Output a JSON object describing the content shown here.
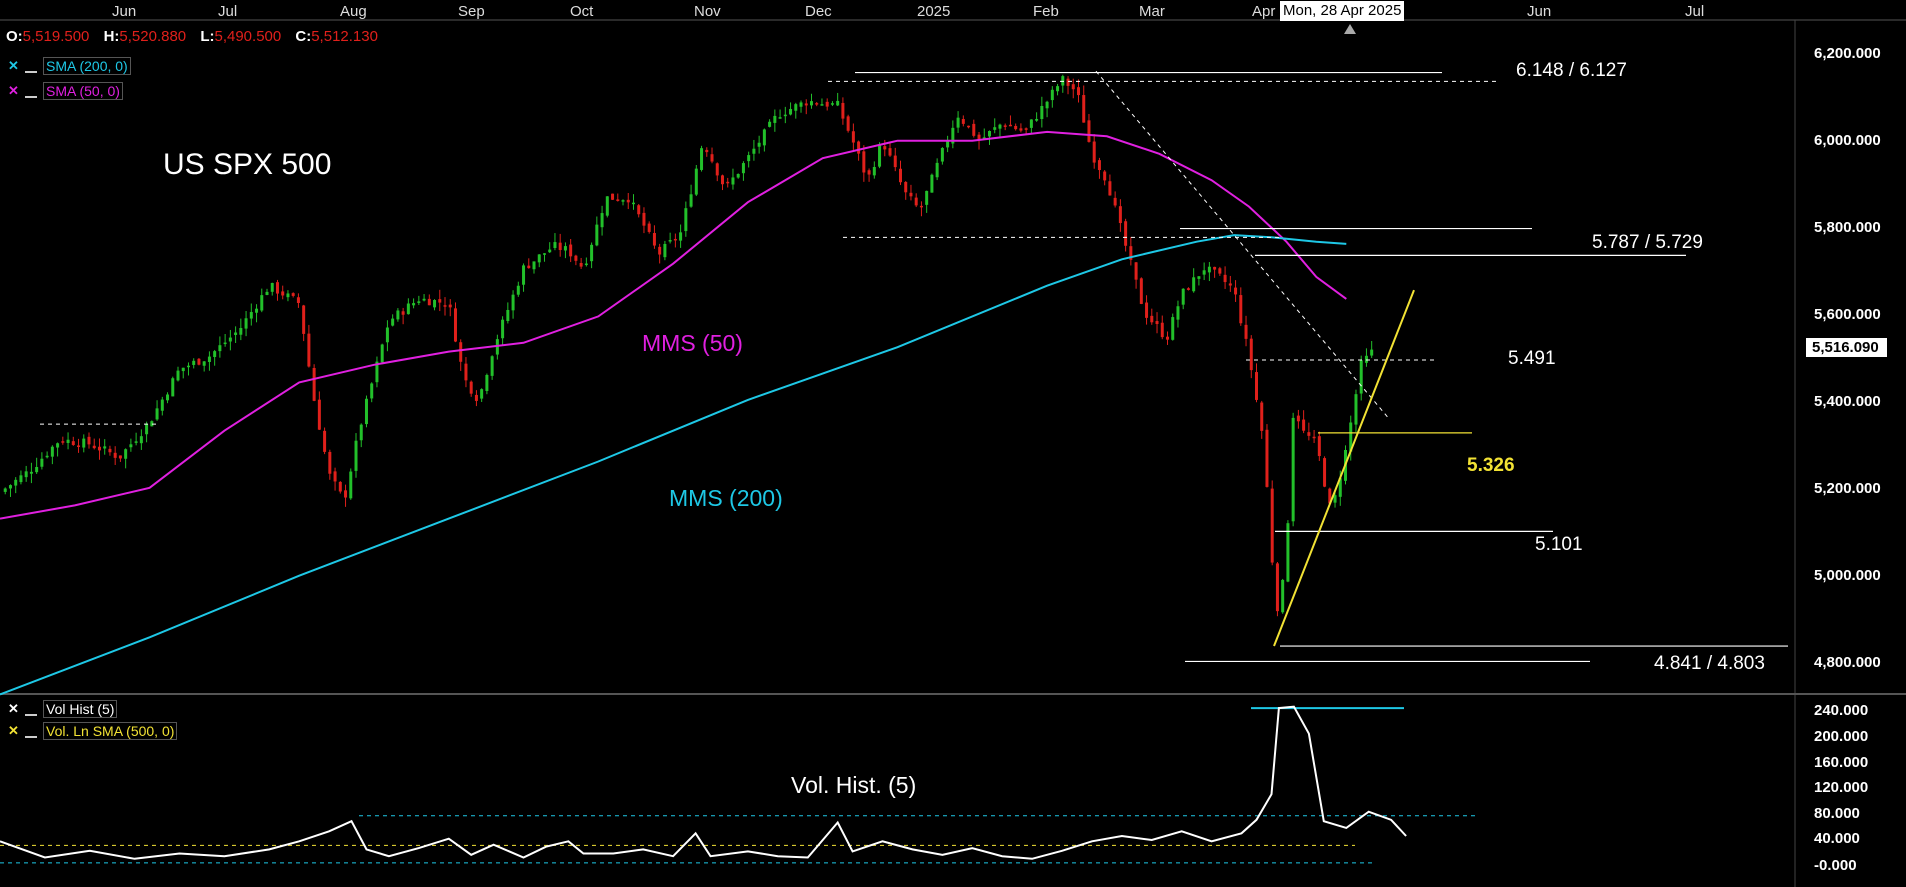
{
  "header": {
    "o_label": "O:",
    "o_value": "5,519.500",
    "h_label": "H:",
    "h_value": "5,520.880",
    "l_label": "L:",
    "l_value": "5,490.500",
    "c_label": "C:",
    "c_value": "5,512.130",
    "cursor_date": "Mon, 28 Apr 2025"
  },
  "legends": {
    "sma200": "SMA (200, 0)",
    "sma50": "SMA (50, 0)",
    "volhist": "Vol Hist (5)",
    "volsma": "Vol. Ln SMA (500, 0)"
  },
  "colors": {
    "up": "#22c02a",
    "down": "#e0201b",
    "sma200": "#1ec8e6",
    "sma50": "#e020e0",
    "trend": "#f2e234",
    "vol": "#ffffff",
    "level": "#ffffff"
  },
  "chart_data": [
    {
      "type": "line",
      "title": "US SPX 500",
      "x_ticks": [
        "Jun",
        "Jul",
        "Aug",
        "Sep",
        "Oct",
        "Nov",
        "Dec",
        "2025",
        "Feb",
        "Mar",
        "Apr",
        "Jun",
        "Jul"
      ],
      "y_ticks": [
        "6,200.000",
        "6,000.000",
        "5,800.000",
        "5,600.000",
        "5,400.000",
        "5,200.000",
        "5,000.000",
        "4,800.000"
      ],
      "ylim": [
        4740,
        6260
      ],
      "last_price": "5,516.090",
      "price_path": [
        [
          0,
          5190
        ],
        [
          4,
          5240
        ],
        [
          8,
          5310
        ],
        [
          12,
          5300
        ],
        [
          16,
          5270
        ],
        [
          20,
          5350
        ],
        [
          24,
          5470
        ],
        [
          28,
          5500
        ],
        [
          32,
          5560
        ],
        [
          36,
          5660
        ],
        [
          40,
          5620
        ],
        [
          42,
          5400
        ],
        [
          44,
          5230
        ],
        [
          46,
          5170
        ],
        [
          48,
          5330
        ],
        [
          52,
          5580
        ],
        [
          56,
          5630
        ],
        [
          60,
          5620
        ],
        [
          62,
          5450
        ],
        [
          64,
          5400
        ],
        [
          66,
          5520
        ],
        [
          70,
          5700
        ],
        [
          74,
          5750
        ],
        [
          76,
          5740
        ],
        [
          78,
          5700
        ],
        [
          81,
          5860
        ],
        [
          84,
          5860
        ],
        [
          86,
          5800
        ],
        [
          88,
          5730
        ],
        [
          91,
          5780
        ],
        [
          94,
          5990
        ],
        [
          97,
          5880
        ],
        [
          100,
          5950
        ],
        [
          104,
          6050
        ],
        [
          108,
          6080
        ],
        [
          112,
          6070
        ],
        [
          114,
          5990
        ],
        [
          116,
          5900
        ],
        [
          118,
          5990
        ],
        [
          121,
          5870
        ],
        [
          123,
          5830
        ],
        [
          125,
          5920
        ],
        [
          128,
          6050
        ],
        [
          131,
          5990
        ],
        [
          134,
          6030
        ],
        [
          137,
          6010
        ],
        [
          140,
          6080
        ],
        [
          142,
          6130
        ],
        [
          144,
          6100
        ],
        [
          146,
          5960
        ],
        [
          148,
          5900
        ],
        [
          150,
          5780
        ],
        [
          153,
          5600
        ],
        [
          156,
          5540
        ],
        [
          158,
          5640
        ],
        [
          161,
          5700
        ],
        [
          163,
          5680
        ],
        [
          165,
          5650
        ],
        [
          167,
          5500
        ],
        [
          169,
          5300
        ],
        [
          170,
          5050
        ],
        [
          171,
          4900
        ],
        [
          172,
          5060
        ],
        [
          173,
          5400
        ],
        [
          174,
          5330
        ],
        [
          176,
          5300
        ],
        [
          178,
          5140
        ],
        [
          180,
          5290
        ],
        [
          182,
          5480
        ],
        [
          184,
          5520
        ]
      ],
      "price_x_max": 240,
      "sma50_path": [
        [
          0,
          5130
        ],
        [
          10,
          5160
        ],
        [
          20,
          5200
        ],
        [
          30,
          5330
        ],
        [
          40,
          5440
        ],
        [
          50,
          5480
        ],
        [
          60,
          5510
        ],
        [
          70,
          5530
        ],
        [
          80,
          5590
        ],
        [
          90,
          5710
        ],
        [
          100,
          5850
        ],
        [
          110,
          5950
        ],
        [
          120,
          5990
        ],
        [
          130,
          5990
        ],
        [
          140,
          6010
        ],
        [
          148,
          6000
        ],
        [
          155,
          5960
        ],
        [
          162,
          5900
        ],
        [
          167,
          5840
        ],
        [
          172,
          5760
        ],
        [
          176,
          5680
        ],
        [
          180,
          5630
        ]
      ],
      "sma200_path": [
        [
          0,
          4730
        ],
        [
          20,
          4860
        ],
        [
          40,
          5000
        ],
        [
          60,
          5130
        ],
        [
          80,
          5260
        ],
        [
          100,
          5400
        ],
        [
          120,
          5520
        ],
        [
          140,
          5660
        ],
        [
          150,
          5720
        ],
        [
          160,
          5760
        ],
        [
          165,
          5775
        ],
        [
          170,
          5770
        ],
        [
          176,
          5760
        ],
        [
          180,
          5755
        ]
      ],
      "levels": [
        {
          "label": "6.148 / 6.127",
          "value": 6145
        },
        {
          "label": "5.787 / 5.729",
          "value": 5790
        },
        {
          "label": "5.491",
          "value": 5491
        },
        {
          "label": "5.326",
          "value": 5325
        },
        {
          "label": "5.101",
          "value": 5101
        },
        {
          "label": "4.841 / 4.803",
          "value": 4840
        }
      ],
      "annotations": {
        "mms50": "MMS (50)",
        "mms200": "MMS (200)"
      },
      "series": [
        {
          "name": "SMA (200, 0)"
        },
        {
          "name": "SMA (50, 0)"
        }
      ]
    },
    {
      "type": "line",
      "title": "Vol. Hist. (5)",
      "y_ticks": [
        "240.000",
        "200.000",
        "160.000",
        "120.000",
        "80.000",
        "40.000",
        "-0.000"
      ],
      "ylim": [
        -10,
        250
      ],
      "levels": [
        {
          "value": 238
        },
        {
          "value": 78
        },
        {
          "value": 34
        },
        {
          "value": 8
        }
      ],
      "vol_path": [
        [
          0,
          40
        ],
        [
          6,
          16
        ],
        [
          12,
          26
        ],
        [
          18,
          14
        ],
        [
          24,
          22
        ],
        [
          30,
          18
        ],
        [
          36,
          28
        ],
        [
          40,
          40
        ],
        [
          44,
          55
        ],
        [
          47,
          70
        ],
        [
          49,
          28
        ],
        [
          52,
          18
        ],
        [
          56,
          30
        ],
        [
          60,
          44
        ],
        [
          63,
          20
        ],
        [
          66,
          35
        ],
        [
          70,
          16
        ],
        [
          73,
          32
        ],
        [
          76,
          40
        ],
        [
          78,
          22
        ],
        [
          82,
          22
        ],
        [
          86,
          28
        ],
        [
          90,
          18
        ],
        [
          93,
          52
        ],
        [
          95,
          18
        ],
        [
          100,
          25
        ],
        [
          104,
          18
        ],
        [
          108,
          16
        ],
        [
          112,
          68
        ],
        [
          114,
          25
        ],
        [
          118,
          40
        ],
        [
          122,
          28
        ],
        [
          126,
          20
        ],
        [
          130,
          30
        ],
        [
          134,
          18
        ],
        [
          138,
          14
        ],
        [
          142,
          26
        ],
        [
          146,
          40
        ],
        [
          150,
          48
        ],
        [
          154,
          42
        ],
        [
          158,
          55
        ],
        [
          162,
          40
        ],
        [
          166,
          52
        ],
        [
          168,
          72
        ],
        [
          170,
          110
        ],
        [
          171,
          238
        ],
        [
          173,
          240
        ],
        [
          175,
          200
        ],
        [
          177,
          70
        ],
        [
          180,
          60
        ],
        [
          183,
          84
        ],
        [
          186,
          72
        ],
        [
          188,
          48
        ]
      ]
    }
  ]
}
